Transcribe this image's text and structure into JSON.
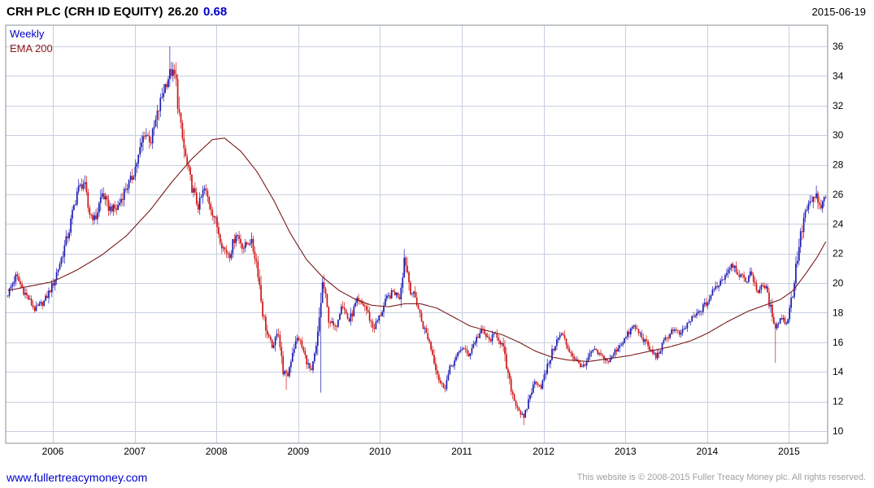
{
  "header": {
    "title": "CRH PLC (CRH ID EQUITY)",
    "last_price": "26.20",
    "change": "0.68",
    "date": "2015-06-19"
  },
  "legend": {
    "series": "Weekly",
    "overlay": "EMA 200"
  },
  "footer": {
    "link": "www.fullertreacymoney.com",
    "copyright": "This website is © 2008-2015 Fuller Treacy Money plc. All rights reserved."
  },
  "chart_data": {
    "type": "candlestick",
    "title": "CRH PLC (CRH ID EQUITY)",
    "frequency": "Weekly",
    "overlay": "EMA 200",
    "last_price": 26.2,
    "change": 0.68,
    "as_of": "2015-06-19",
    "x_ticks": [
      2006,
      2007,
      2008,
      2009,
      2010,
      2011,
      2012,
      2013,
      2014,
      2015
    ],
    "y_ticks": [
      10,
      12,
      14,
      16,
      18,
      20,
      22,
      24,
      26,
      28,
      30,
      32,
      34,
      36
    ],
    "x_range": [
      2005.45,
      2015.46
    ],
    "ylim": [
      10,
      36
    ],
    "grid": true,
    "legend_position": "top-left",
    "y_axis_side": "right",
    "colors": {
      "up": "#1c1cb4",
      "down": "#d01616",
      "ema": "#7a1a1a",
      "grid": "#c8cfe0",
      "border": "#8a8f96"
    },
    "price_path": [
      [
        2005.45,
        19.3
      ],
      [
        2005.55,
        20.5
      ],
      [
        2005.65,
        19.4
      ],
      [
        2005.78,
        18.2
      ],
      [
        2005.9,
        18.8
      ],
      [
        2006.0,
        19.9
      ],
      [
        2006.1,
        21.6
      ],
      [
        2006.2,
        23.6
      ],
      [
        2006.3,
        26.3
      ],
      [
        2006.38,
        26.8
      ],
      [
        2006.44,
        24.8
      ],
      [
        2006.52,
        24.3
      ],
      [
        2006.6,
        26.1
      ],
      [
        2006.68,
        25.1
      ],
      [
        2006.78,
        25.0
      ],
      [
        2006.88,
        26.3
      ],
      [
        2006.96,
        27.0
      ],
      [
        2007.05,
        28.6
      ],
      [
        2007.12,
        30.2
      ],
      [
        2007.2,
        29.6
      ],
      [
        2007.28,
        31.4
      ],
      [
        2007.36,
        33.2
      ],
      [
        2007.44,
        34.3
      ],
      [
        2007.5,
        33.9
      ],
      [
        2007.56,
        30.5
      ],
      [
        2007.63,
        28.2
      ],
      [
        2007.7,
        26.5
      ],
      [
        2007.78,
        25.1
      ],
      [
        2007.85,
        26.4
      ],
      [
        2007.93,
        25.2
      ],
      [
        2008.0,
        24.0
      ],
      [
        2008.08,
        22.4
      ],
      [
        2008.16,
        21.9
      ],
      [
        2008.24,
        23.4
      ],
      [
        2008.33,
        22.4
      ],
      [
        2008.42,
        22.9
      ],
      [
        2008.5,
        21.2
      ],
      [
        2008.56,
        18.2
      ],
      [
        2008.63,
        16.3
      ],
      [
        2008.7,
        15.6
      ],
      [
        2008.75,
        17.1
      ],
      [
        2008.81,
        14.1
      ],
      [
        2008.87,
        13.7
      ],
      [
        2008.93,
        15.4
      ],
      [
        2009.0,
        16.4
      ],
      [
        2009.08,
        15.1
      ],
      [
        2009.16,
        13.9
      ],
      [
        2009.23,
        15.9
      ],
      [
        2009.3,
        20.2
      ],
      [
        2009.37,
        17.6
      ],
      [
        2009.45,
        16.9
      ],
      [
        2009.53,
        18.7
      ],
      [
        2009.62,
        17.4
      ],
      [
        2009.72,
        18.8
      ],
      [
        2009.82,
        18.4
      ],
      [
        2009.92,
        16.9
      ],
      [
        2010.0,
        17.8
      ],
      [
        2010.08,
        18.9
      ],
      [
        2010.16,
        19.4
      ],
      [
        2010.24,
        19.1
      ],
      [
        2010.3,
        21.9
      ],
      [
        2010.37,
        19.6
      ],
      [
        2010.44,
        18.9
      ],
      [
        2010.52,
        17.2
      ],
      [
        2010.6,
        16.1
      ],
      [
        2010.67,
        14.6
      ],
      [
        2010.73,
        13.3
      ],
      [
        2010.79,
        12.9
      ],
      [
        2010.86,
        14.3
      ],
      [
        2010.93,
        14.9
      ],
      [
        2011.0,
        15.7
      ],
      [
        2011.08,
        15.1
      ],
      [
        2011.17,
        16.2
      ],
      [
        2011.25,
        16.8
      ],
      [
        2011.33,
        16.1
      ],
      [
        2011.42,
        16.6
      ],
      [
        2011.5,
        15.7
      ],
      [
        2011.57,
        13.6
      ],
      [
        2011.64,
        12.1
      ],
      [
        2011.7,
        11.4
      ],
      [
        2011.76,
        10.8
      ],
      [
        2011.83,
        12.4
      ],
      [
        2011.9,
        13.4
      ],
      [
        2011.97,
        13.0
      ],
      [
        2012.05,
        14.4
      ],
      [
        2012.14,
        15.9
      ],
      [
        2012.22,
        16.6
      ],
      [
        2012.3,
        15.6
      ],
      [
        2012.4,
        14.7
      ],
      [
        2012.5,
        14.3
      ],
      [
        2012.6,
        15.5
      ],
      [
        2012.7,
        15.1
      ],
      [
        2012.8,
        14.7
      ],
      [
        2012.9,
        15.6
      ],
      [
        2013.0,
        16.3
      ],
      [
        2013.1,
        17.1
      ],
      [
        2013.2,
        16.4
      ],
      [
        2013.3,
        15.5
      ],
      [
        2013.38,
        15.0
      ],
      [
        2013.48,
        16.1
      ],
      [
        2013.58,
        16.9
      ],
      [
        2013.68,
        16.5
      ],
      [
        2013.78,
        17.4
      ],
      [
        2013.88,
        17.9
      ],
      [
        2014.0,
        18.7
      ],
      [
        2014.1,
        19.7
      ],
      [
        2014.2,
        20.4
      ],
      [
        2014.3,
        21.4
      ],
      [
        2014.38,
        20.7
      ],
      [
        2014.46,
        20.1
      ],
      [
        2014.54,
        20.7
      ],
      [
        2014.62,
        19.4
      ],
      [
        2014.7,
        19.9
      ],
      [
        2014.77,
        18.4
      ],
      [
        2014.84,
        17.0
      ],
      [
        2014.9,
        17.7
      ],
      [
        2014.97,
        17.3
      ],
      [
        2015.05,
        19.5
      ],
      [
        2015.12,
        22.5
      ],
      [
        2015.2,
        24.8
      ],
      [
        2015.27,
        25.4
      ],
      [
        2015.33,
        26.0
      ],
      [
        2015.38,
        24.9
      ],
      [
        2015.43,
        25.6
      ],
      [
        2015.46,
        26.2
      ]
    ],
    "ema_path": [
      [
        2005.45,
        19.5
      ],
      [
        2006.0,
        20.1
      ],
      [
        2006.3,
        20.9
      ],
      [
        2006.6,
        21.9
      ],
      [
        2006.9,
        23.2
      ],
      [
        2007.2,
        25.0
      ],
      [
        2007.45,
        26.8
      ],
      [
        2007.7,
        28.4
      ],
      [
        2007.95,
        29.7
      ],
      [
        2008.1,
        29.8
      ],
      [
        2008.3,
        28.9
      ],
      [
        2008.5,
        27.5
      ],
      [
        2008.7,
        25.6
      ],
      [
        2008.9,
        23.4
      ],
      [
        2009.1,
        21.6
      ],
      [
        2009.3,
        20.4
      ],
      [
        2009.5,
        19.5
      ],
      [
        2009.7,
        18.9
      ],
      [
        2009.9,
        18.5
      ],
      [
        2010.1,
        18.4
      ],
      [
        2010.3,
        18.6
      ],
      [
        2010.5,
        18.6
      ],
      [
        2010.7,
        18.3
      ],
      [
        2010.9,
        17.7
      ],
      [
        2011.1,
        17.1
      ],
      [
        2011.3,
        16.8
      ],
      [
        2011.5,
        16.5
      ],
      [
        2011.7,
        16.0
      ],
      [
        2011.9,
        15.4
      ],
      [
        2012.1,
        15.0
      ],
      [
        2012.3,
        14.8
      ],
      [
        2012.55,
        14.7
      ],
      [
        2012.8,
        14.9
      ],
      [
        2013.05,
        15.1
      ],
      [
        2013.3,
        15.4
      ],
      [
        2013.55,
        15.7
      ],
      [
        2013.8,
        16.1
      ],
      [
        2014.0,
        16.6
      ],
      [
        2014.25,
        17.4
      ],
      [
        2014.5,
        18.1
      ],
      [
        2014.7,
        18.5
      ],
      [
        2014.9,
        18.9
      ],
      [
        2015.05,
        19.5
      ],
      [
        2015.2,
        20.6
      ],
      [
        2015.35,
        21.8
      ],
      [
        2015.46,
        22.9
      ]
    ],
    "spikes": [
      [
        2007.44,
        36.0,
        "high"
      ],
      [
        2008.86,
        12.8,
        "low"
      ],
      [
        2009.27,
        12.6,
        "low"
      ],
      [
        2010.3,
        22.3,
        "high"
      ],
      [
        2011.76,
        10.4,
        "low"
      ],
      [
        2014.84,
        14.6,
        "low"
      ],
      [
        2015.33,
        26.6,
        "high"
      ]
    ]
  }
}
